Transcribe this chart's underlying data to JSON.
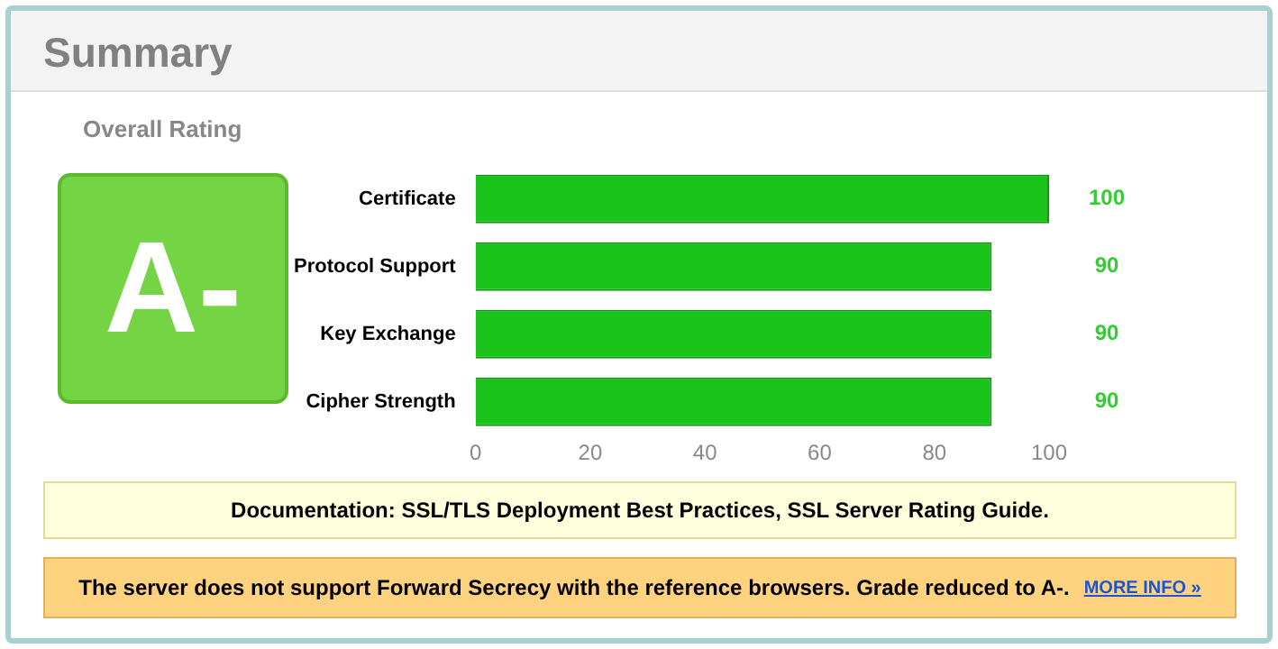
{
  "chart_data": {
    "type": "bar",
    "orientation": "horizontal",
    "title": "Summary",
    "categories": [
      "Certificate",
      "Protocol Support",
      "Key Exchange",
      "Cipher Strength"
    ],
    "values": [
      100,
      90,
      90,
      90
    ],
    "color": "#19c319",
    "data_labels": true,
    "xlim": [
      0,
      100
    ],
    "xticks": [
      0,
      20,
      40,
      60,
      80,
      100
    ],
    "grid": false,
    "legend": false,
    "annotations": [
      "Overall Rating",
      "A-",
      "Documentation: SSL/TLS Deployment Best Practices, SSL Server Rating Guide.",
      "The server does not support Forward Secrecy with the reference browsers. Grade reduced to A-.",
      "MORE INFO »"
    ]
  }
}
